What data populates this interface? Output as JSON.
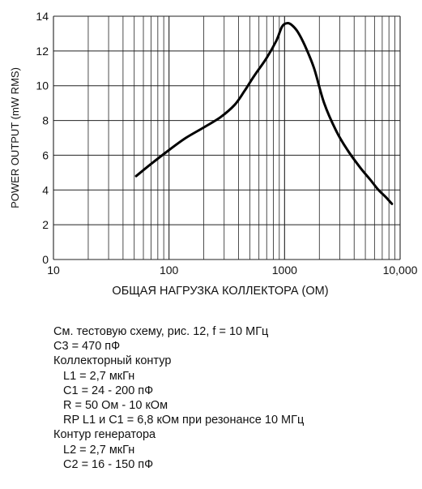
{
  "chart_data": {
    "type": "line",
    "title": "",
    "xlabel": "ОБЩАЯ НАГРУЗКА КОЛЛЕКТОРА (ОМ)",
    "ylabel": "POWER OUTPUT (mW RMS)",
    "x_scale": "log",
    "xlim": [
      10,
      10000
    ],
    "ylim": [
      0,
      14
    ],
    "x_ticks": [
      10,
      100,
      1000,
      10000
    ],
    "x_tick_labels": [
      "10",
      "100",
      "1000",
      "10,000"
    ],
    "y_ticks": [
      0,
      2,
      4,
      6,
      8,
      10,
      12,
      14
    ],
    "y_tick_labels": [
      "0",
      "2",
      "4",
      "6",
      "8",
      "10",
      "12",
      "14"
    ],
    "grid": true,
    "series": [
      {
        "x": [
          52,
          70,
          100,
          140,
          200,
          280,
          370,
          450,
          550,
          700,
          850,
          950,
          1050,
          1150,
          1300,
          1500,
          1800,
          2200,
          2800,
          3500,
          4500,
          5500,
          6500,
          7500,
          8500
        ],
        "y": [
          4.8,
          5.5,
          6.3,
          7.0,
          7.6,
          8.2,
          8.9,
          9.7,
          10.6,
          11.6,
          12.6,
          13.4,
          13.6,
          13.5,
          13.1,
          12.3,
          11.0,
          9.0,
          7.4,
          6.3,
          5.3,
          4.6,
          4.0,
          3.6,
          3.2
        ]
      }
    ]
  },
  "notes": {
    "line1": "См. тестовую схему, рис. 12, f = 10 МГц",
    "line2": "C3 = 470 пФ",
    "line3": "Коллекторный контур",
    "line4": "L1 = 2,7 мкГн",
    "line5": "C1 = 24 - 200 пФ",
    "line6": "R = 50 Ом - 10 кОм",
    "line7": "RP L1 и C1 = 6,8 кОм при резонансе 10 МГц",
    "line8": "Контур генератора",
    "line9": "L2 = 2,7 мкГн",
    "line10": "C2 = 16 - 150 пФ"
  }
}
